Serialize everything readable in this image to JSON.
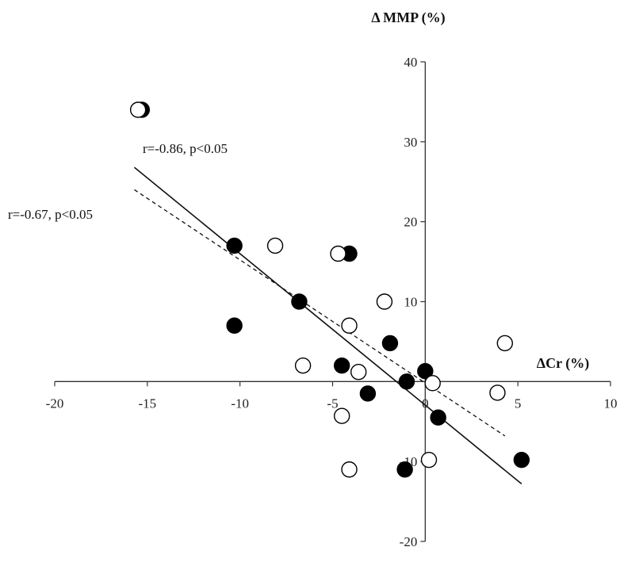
{
  "chart_data": {
    "type": "scatter",
    "xlabel": "ΔCr (%)",
    "ylabel": "Δ MMP (%)",
    "xlim": [
      -20,
      10
    ],
    "ylim": [
      -20,
      40
    ],
    "x_ticks": [
      -20,
      -15,
      -10,
      -5,
      0,
      5,
      10
    ],
    "y_ticks": [
      -20,
      -10,
      10,
      20,
      30,
      40
    ],
    "x_tick_labels": [
      "-20",
      "-15",
      "-10",
      "-5",
      "0",
      "5",
      "10"
    ],
    "y_tick_labels": [
      "-20",
      "-10",
      "10",
      "20",
      "30",
      "40"
    ],
    "grid": false,
    "series": [
      {
        "marker": "filled-circle",
        "color": "#000000",
        "points": [
          {
            "x": -15.3,
            "y": 34
          },
          {
            "x": -10.3,
            "y": 17
          },
          {
            "x": -10.3,
            "y": 7
          },
          {
            "x": -6.8,
            "y": 10
          },
          {
            "x": -4.1,
            "y": 16
          },
          {
            "x": -4.5,
            "y": 2
          },
          {
            "x": -3.1,
            "y": -1.5
          },
          {
            "x": -1.9,
            "y": 4.8
          },
          {
            "x": -1.0,
            "y": 0
          },
          {
            "x": 0,
            "y": 1.3
          },
          {
            "x": 0.7,
            "y": -4.5
          },
          {
            "x": 5.2,
            "y": -9.8
          },
          {
            "x": -1.1,
            "y": -11
          }
        ]
      },
      {
        "marker": "open-circle",
        "color": "#000000",
        "points": [
          {
            "x": -15.5,
            "y": 34
          },
          {
            "x": -8.1,
            "y": 17
          },
          {
            "x": -4.7,
            "y": 16
          },
          {
            "x": -2.2,
            "y": 10
          },
          {
            "x": -4.1,
            "y": 7
          },
          {
            "x": -6.6,
            "y": 2
          },
          {
            "x": -3.6,
            "y": 1.2
          },
          {
            "x": -4.5,
            "y": -4.3
          },
          {
            "x": -4.1,
            "y": -11
          },
          {
            "x": 0.2,
            "y": -9.8
          },
          {
            "x": 0.4,
            "y": -0.2
          },
          {
            "x": 3.9,
            "y": -1.4
          },
          {
            "x": 4.3,
            "y": 4.8
          }
        ]
      }
    ],
    "fit_lines": [
      {
        "style": "solid",
        "x1": -15.7,
        "y1": 26.8,
        "x2": 5.2,
        "y2": -12.8,
        "label": "r=-0.86, p<0.05"
      },
      {
        "style": "dashed",
        "x1": -15.7,
        "y1": 24.0,
        "x2": 4.3,
        "y2": -6.8,
        "label": "r=-0.67, p<0.05"
      }
    ]
  }
}
